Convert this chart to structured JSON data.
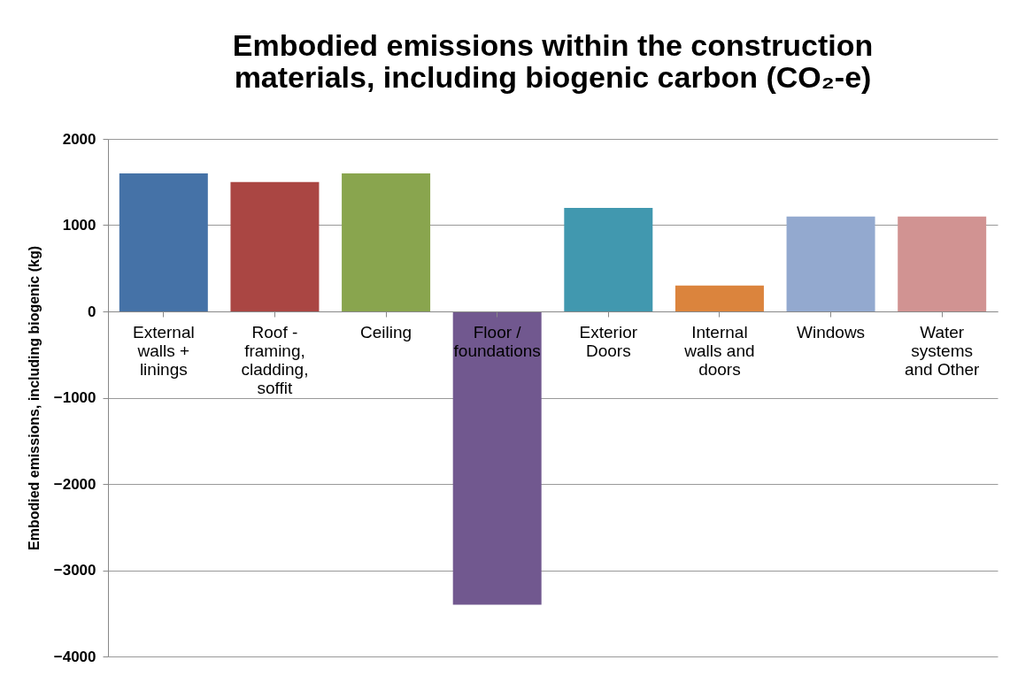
{
  "chart_data": {
    "type": "bar",
    "title": "Embodied emissions within the construction materials, including biogenic carbon (CO₂-e)",
    "ylabel": "Embodied emissions, including biogenic (kg)",
    "categories": [
      "External walls + linings",
      "Roof - framing, cladding, soffit",
      "Ceiling",
      "Floor / foundations",
      "Exterior Doors",
      "Internal walls and doors",
      "Windows",
      "Water systems and Other"
    ],
    "values": [
      1600,
      1500,
      1600,
      -3400,
      1200,
      300,
      1100,
      1100
    ],
    "colors": [
      "#4572a7",
      "#aa4643",
      "#89a54e",
      "#71588f",
      "#4198af",
      "#db843d",
      "#93a9cf",
      "#d19392"
    ],
    "ylim": [
      -4000,
      2000
    ],
    "yticks": [
      -4000,
      -3000,
      -2000,
      -1000,
      0,
      1000,
      2000
    ],
    "grid": "y",
    "legend": false
  }
}
